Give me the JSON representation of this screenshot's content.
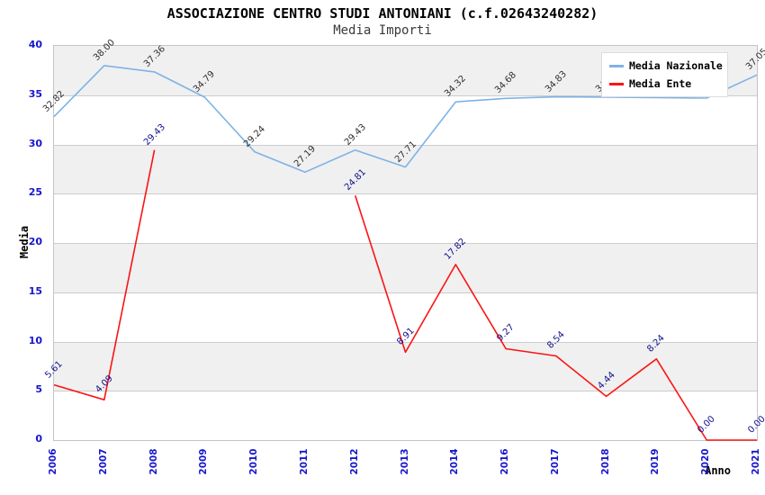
{
  "header": {
    "title": "ASSOCIAZIONE CENTRO STUDI ANTONIANI (c.f.02643240282)",
    "subtitle": "Media Importi"
  },
  "colors": {
    "nazionale_line": "#7FB2E5",
    "ente_line": "#FA1414",
    "nazionale_label": "#303030",
    "ente_label": "#10108E",
    "axis_tick_text": "#1616CC",
    "band_gray": "#F0F0F0",
    "band_white": "#FFFFFF",
    "gridline": "#CCCCCC"
  },
  "chart_data": {
    "type": "line",
    "title": "ASSOCIAZIONE CENTRO STUDI ANTONIANI (c.f.02643240282)",
    "subtitle": "Media Importi",
    "xlabel": "Anno",
    "ylabel": "Media",
    "ylim": [
      0,
      40
    ],
    "yticks": [
      0,
      5,
      10,
      15,
      20,
      25,
      30,
      35,
      40
    ],
    "grid": "horizontal-only",
    "plot_bands": "alternating gray/white per 5-unit row, gray at top (35-40)",
    "legend_position": "top-right",
    "categories": [
      "2006",
      "2007",
      "2008",
      "2009",
      "2010",
      "2011",
      "2012",
      "2013",
      "2014",
      "2016",
      "2017",
      "2018",
      "2019",
      "2020",
      "2021"
    ],
    "series": [
      {
        "name": "Media Nazionale",
        "values": [
          32.82,
          38.0,
          37.36,
          34.79,
          29.24,
          27.19,
          29.43,
          27.71,
          34.32,
          34.68,
          34.83,
          34.8,
          34.75,
          34.7,
          37.05
        ],
        "labels": [
          "32.82",
          "38.00",
          "37.36",
          "34.79",
          "29.24",
          "27.19",
          "29.43",
          "27.71",
          "34.32",
          "34.68",
          "34.83",
          "34.80",
          "34.75",
          "34.70",
          "37.05"
        ],
        "note_labels_2018_2020": "hidden behind legend box in source image; values estimated from line position"
      },
      {
        "name": "Media Ente",
        "values": [
          5.61,
          4.09,
          29.43,
          null,
          null,
          null,
          24.81,
          8.91,
          17.82,
          9.27,
          8.54,
          4.44,
          8.24,
          0.0,
          0.0
        ],
        "labels": [
          "5.61",
          "4.09",
          "29.43",
          null,
          null,
          null,
          "24.81",
          "8.91",
          "17.82",
          "9.27",
          "8.54",
          "4.44",
          "8.24",
          "0.00",
          "0.00"
        ]
      }
    ]
  }
}
